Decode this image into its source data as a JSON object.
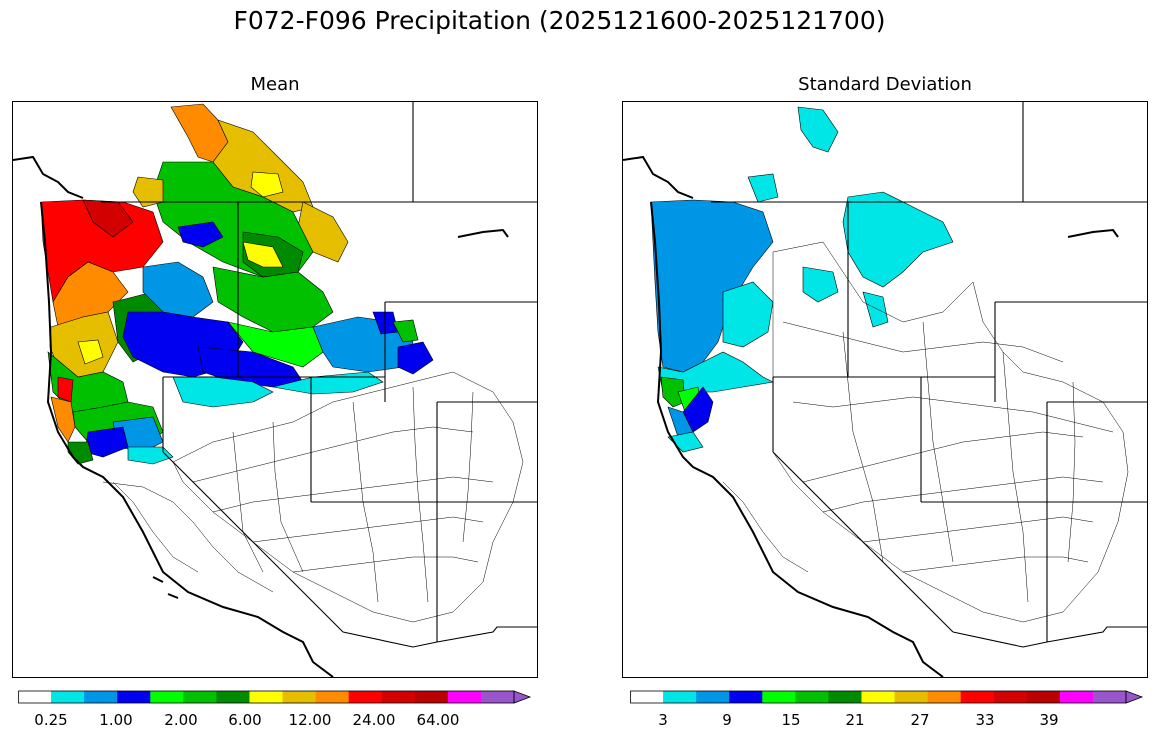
{
  "title": "F072-F096 Precipitation (2025121600-2025121700)",
  "panels": [
    {
      "id": "mean",
      "title": "Mean",
      "colorbar": {
        "colors": [
          "#ffffff",
          "#00e5e5",
          "#0096e6",
          "#0000f0",
          "#00ff00",
          "#00c000",
          "#008a00",
          "#ffff00",
          "#e6be00",
          "#ff8c00",
          "#ff0000",
          "#d20000",
          "#bb0000",
          "#ff00ff",
          "#9955cc"
        ],
        "tick_labels": [
          "0.25",
          "1.00",
          "2.00",
          "6.00",
          "12.00",
          "24.00",
          "64.00"
        ]
      }
    },
    {
      "id": "std",
      "title": "Standard Deviation",
      "colorbar": {
        "colors": [
          "#ffffff",
          "#00e5e5",
          "#0096e6",
          "#0000f0",
          "#00ff00",
          "#00c000",
          "#008a00",
          "#ffff00",
          "#e6be00",
          "#ff8c00",
          "#ff0000",
          "#d20000",
          "#bb0000",
          "#ff00ff",
          "#9955cc"
        ],
        "tick_labels": [
          "3",
          "9",
          "15",
          "21",
          "27",
          "33",
          "39"
        ]
      }
    }
  ]
}
